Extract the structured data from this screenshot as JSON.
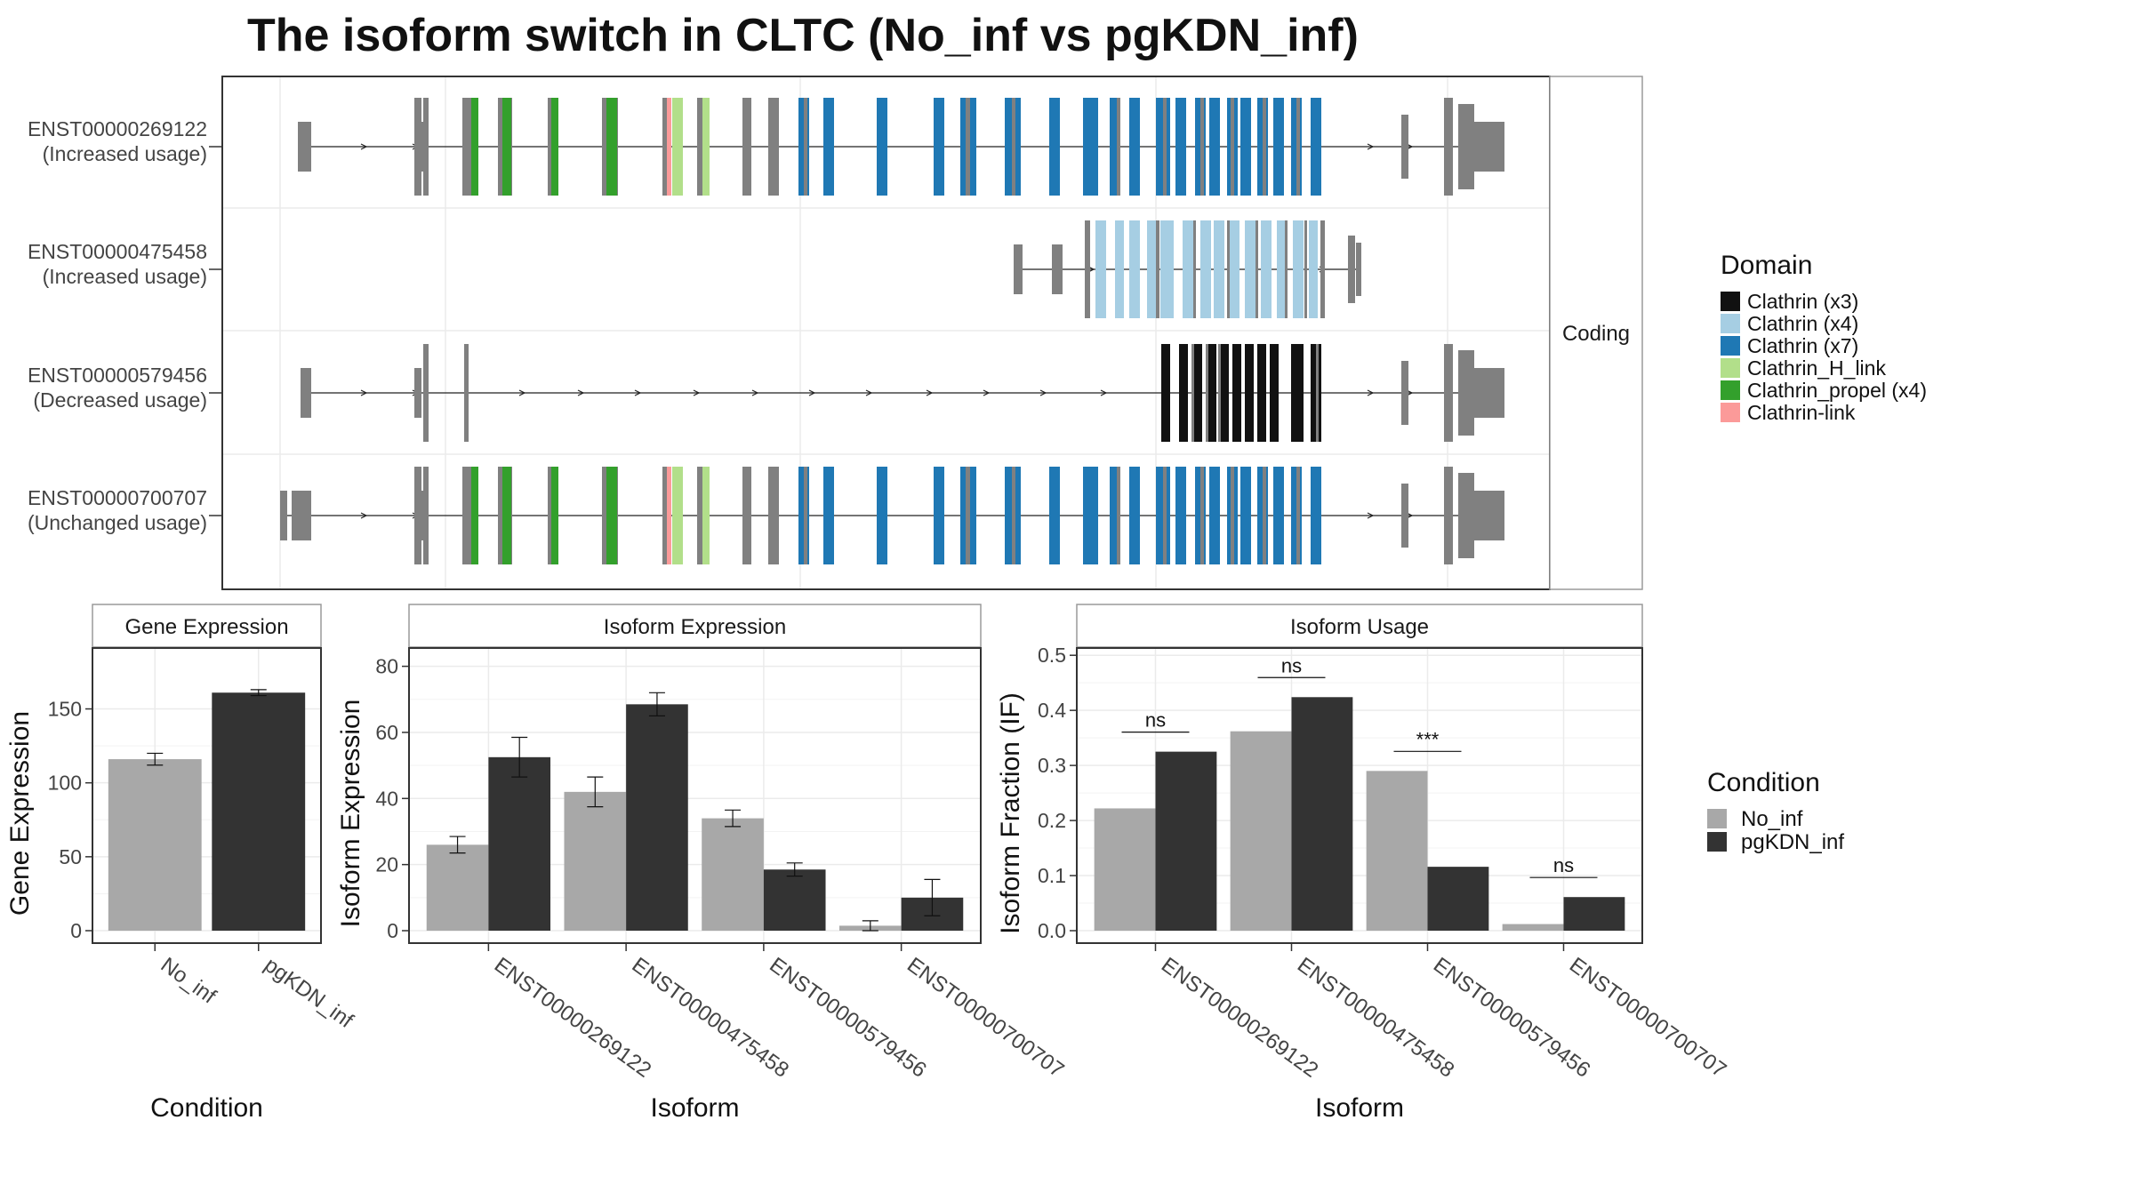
{
  "title": "The isoform switch in CLTC (No_inf vs pgKDN_inf)",
  "colors": {
    "no_inf": "#a8a8a8",
    "pgkdn_inf": "#333333",
    "grid": "#ebebeb",
    "panel_border": "#333333",
    "strip_border": "#9a9a9a",
    "exon": "#808080"
  },
  "transcript_panel": {
    "facet_label": "Coding",
    "transcripts": [
      {
        "id": "ENST00000269122",
        "usage": "(Increased usage)"
      },
      {
        "id": "ENST00000475458",
        "usage": "(Increased usage)"
      },
      {
        "id": "ENST00000579456",
        "usage": "(Decreased usage)"
      },
      {
        "id": "ENST00000700707",
        "usage": "(Unchanged usage)"
      }
    ]
  },
  "domain_legend": {
    "title": "Domain",
    "items": [
      {
        "label": "Clathrin (x3)",
        "color": "#111111"
      },
      {
        "label": "Clathrin (x4)",
        "color": "#a6cee3"
      },
      {
        "label": "Clathrin (x7)",
        "color": "#1f78b4"
      },
      {
        "label": "Clathrin_H_link",
        "color": "#b2df8a"
      },
      {
        "label": "Clathrin_propel (x4)",
        "color": "#33a02c"
      },
      {
        "label": "Clathrin-link",
        "color": "#fb9a99"
      }
    ]
  },
  "condition_legend": {
    "title": "Condition",
    "items": [
      {
        "label": "No_inf",
        "color": "#a8a8a8"
      },
      {
        "label": "pgKDN_inf",
        "color": "#333333"
      }
    ]
  },
  "chart_data": [
    {
      "type": "bar",
      "strip": "Gene Expression",
      "xlabel": "Condition",
      "ylabel": "Gene Expression",
      "ylim": [
        0,
        190
      ],
      "yticks": [
        0,
        50,
        100,
        150
      ],
      "categories": [
        "No_inf",
        "pgKDN_inf"
      ],
      "values": [
        116,
        161
      ],
      "error": [
        4,
        2
      ]
    },
    {
      "type": "bar",
      "strip": "Isoform Expression",
      "xlabel": "Isoform",
      "ylabel": "Isoform Expression",
      "ylim": [
        0,
        85
      ],
      "yticks": [
        0,
        20,
        40,
        60,
        80
      ],
      "categories": [
        "ENST00000269122",
        "ENST00000475458",
        "ENST00000579456",
        "ENST00000700707"
      ],
      "series": [
        {
          "name": "No_inf",
          "values": [
            26,
            42,
            34,
            1.5
          ],
          "error": [
            2.5,
            4.5,
            2.5,
            1.5
          ]
        },
        {
          "name": "pgKDN_inf",
          "values": [
            52.5,
            68.5,
            18.5,
            10
          ],
          "error": [
            6,
            3.5,
            2,
            5.5
          ]
        }
      ]
    },
    {
      "type": "bar",
      "strip": "Isoform Usage",
      "xlabel": "Isoform",
      "ylabel": "Isoform Fraction (IF)",
      "ylim": [
        0,
        0.51
      ],
      "yticks": [
        0.0,
        0.1,
        0.2,
        0.3,
        0.4,
        0.5
      ],
      "categories": [
        "ENST00000269122",
        "ENST00000475458",
        "ENST00000579456",
        "ENST00000700707"
      ],
      "series": [
        {
          "name": "No_inf",
          "values": [
            0.222,
            0.362,
            0.29,
            0.012
          ]
        },
        {
          "name": "pgKDN_inf",
          "values": [
            0.325,
            0.424,
            0.116,
            0.061
          ]
        }
      ],
      "significance": [
        "ns",
        "ns",
        "***",
        "ns"
      ]
    }
  ]
}
